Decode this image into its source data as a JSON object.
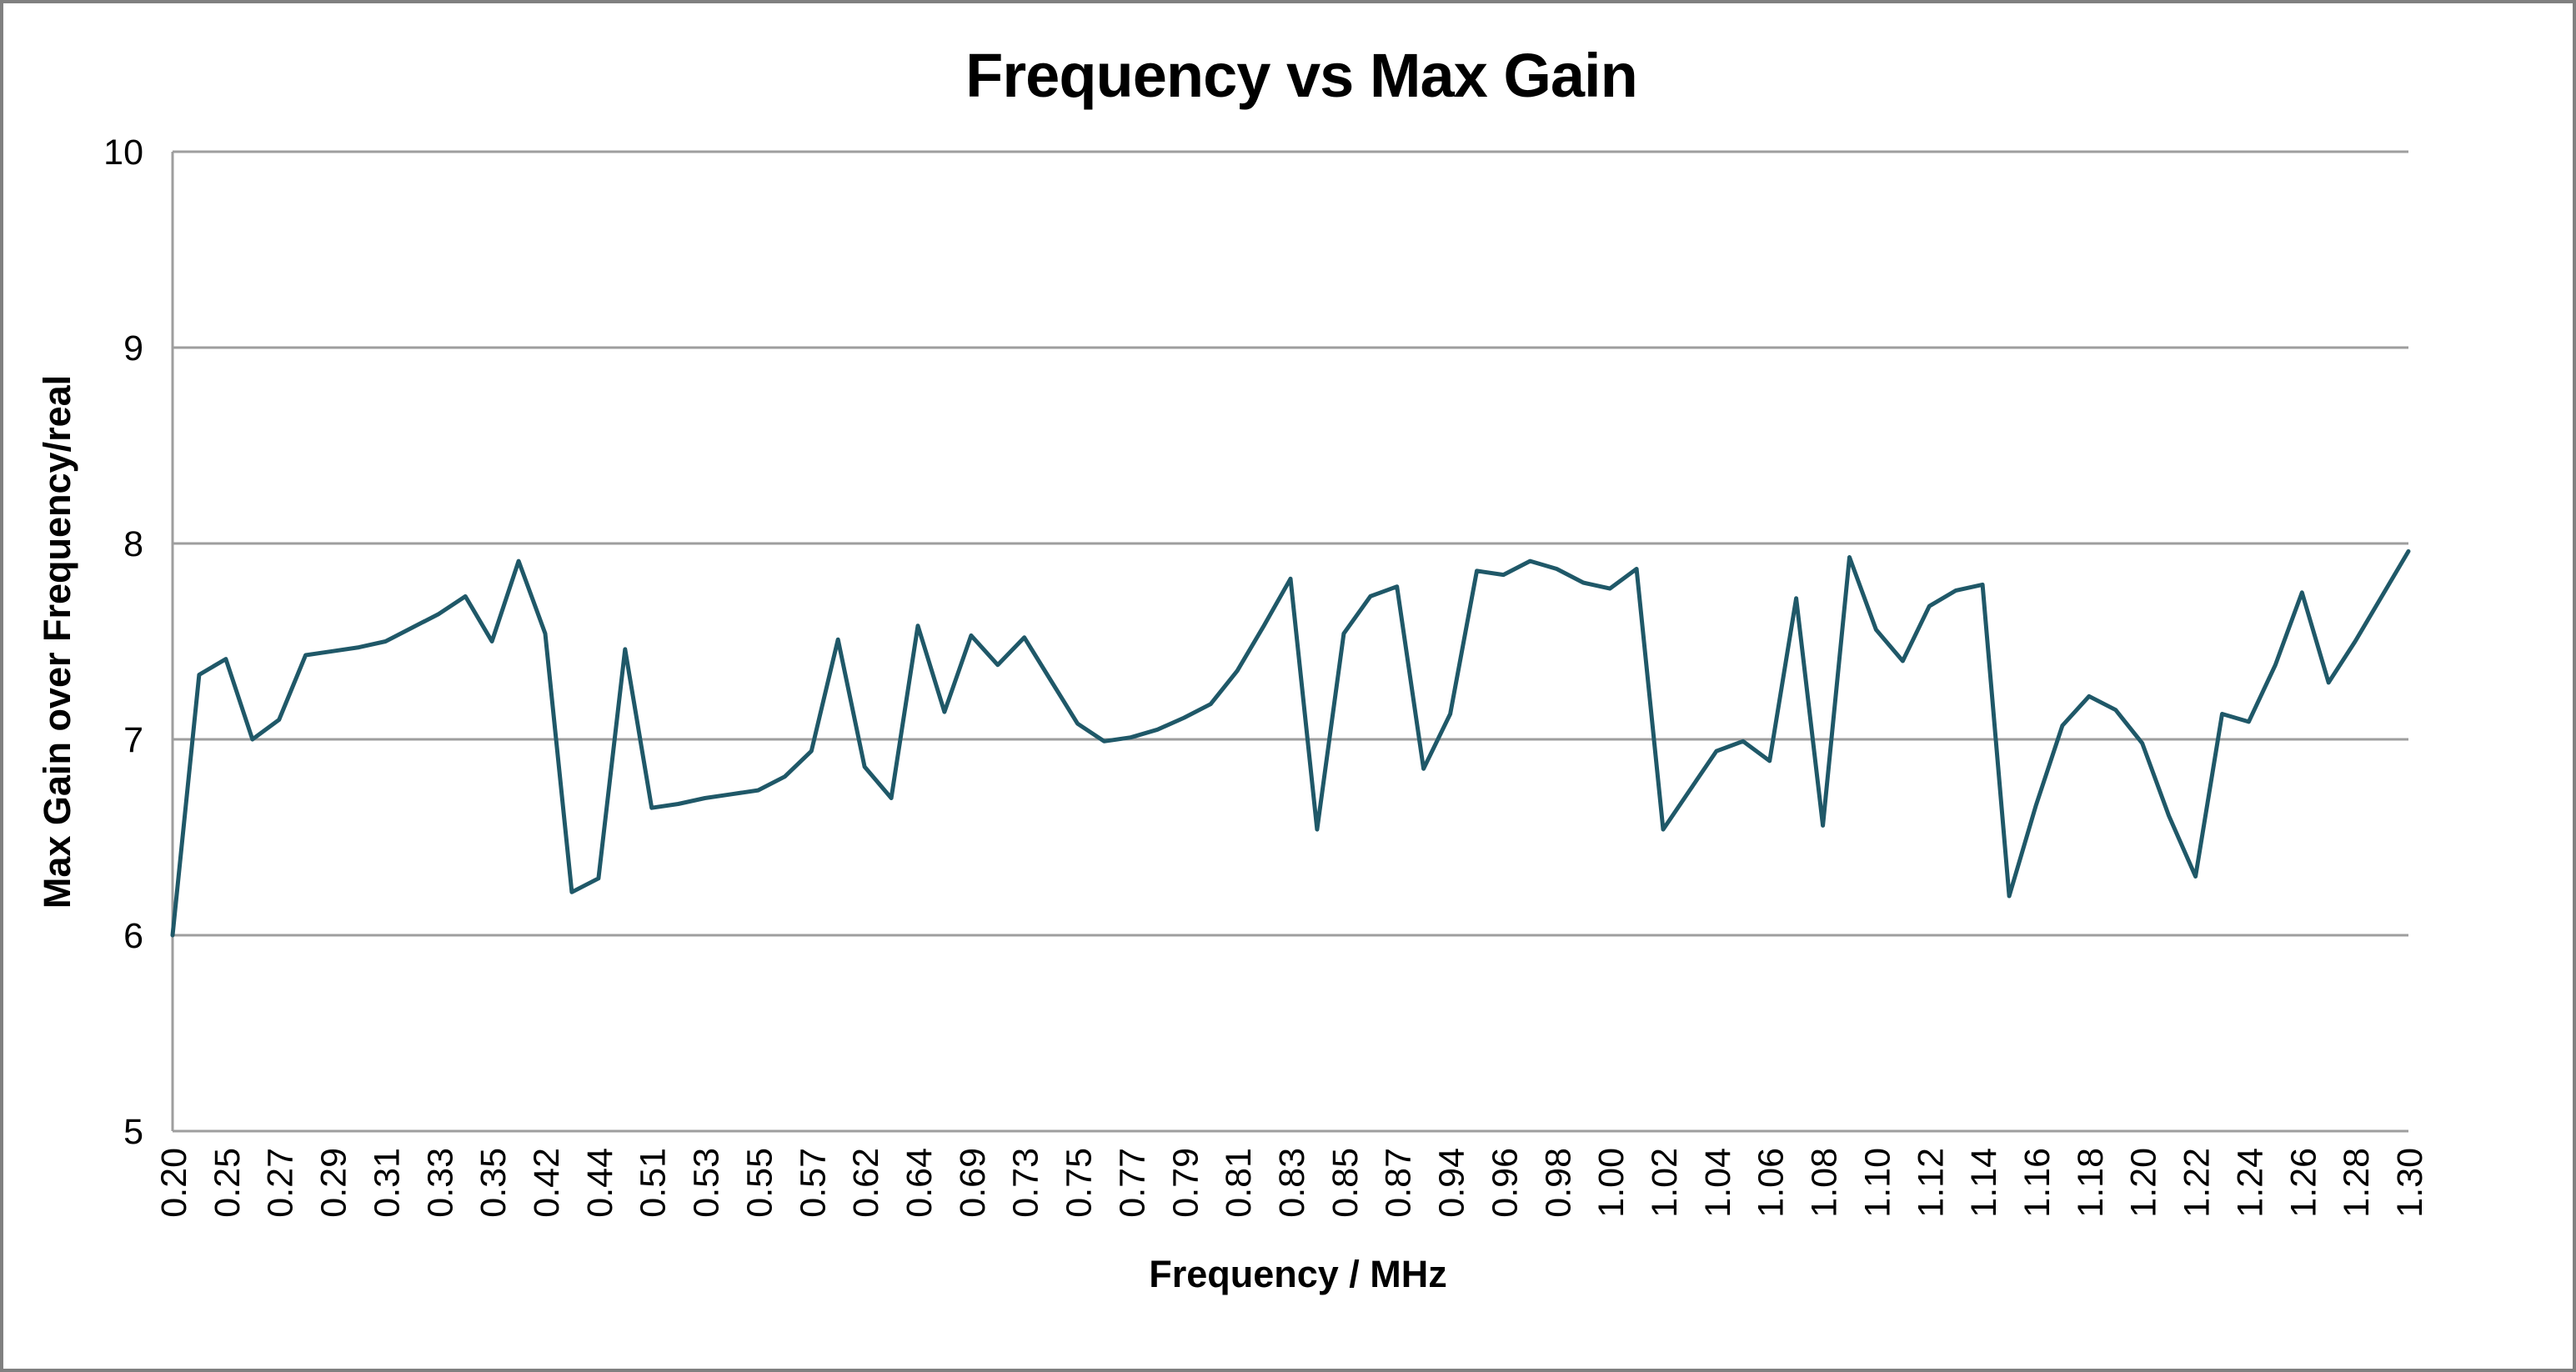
{
  "window": {
    "background_color": "#FFFFFF",
    "border_color": "#808080"
  },
  "chart_data": {
    "type": "line",
    "title": "Frequency vs Max Gain",
    "xlabel": "Frequency / MHz",
    "ylabel": "Max Gain over Frequency/real",
    "ylim": [
      5,
      10
    ],
    "yticks": [
      10,
      9,
      8,
      7,
      6,
      5
    ],
    "grid": "horizontal",
    "legend_position": "none",
    "series_color": "#1F5868",
    "gridline_color": "#9E9E9E",
    "axis_line_color": "#9E9E9E",
    "x_tick_labels": [
      "0.20",
      "0.25",
      "0.27",
      "0.29",
      "0.31",
      "0.33",
      "0.35",
      "0.42",
      "0.44",
      "0.51",
      "0.53",
      "0.55",
      "0.57",
      "0.62",
      "0.64",
      "0.69",
      "0.73",
      "0.75",
      "0.77",
      "0.79",
      "0.81",
      "0.83",
      "0.85",
      "0.87",
      "0.94",
      "0.96",
      "0.98",
      "1.00",
      "1.02",
      "1.04",
      "1.06",
      "1.08",
      "1.10",
      "1.12",
      "1.14",
      "1.16",
      "1.18",
      "1.20",
      "1.22",
      "1.24",
      "1.26",
      "1.28",
      "1.30"
    ],
    "x_tick_every_n_points": 2,
    "values": [
      6.0,
      7.33,
      7.41,
      7.0,
      7.1,
      7.43,
      7.45,
      7.47,
      7.5,
      7.57,
      7.64,
      7.73,
      7.5,
      7.91,
      7.54,
      6.22,
      6.29,
      7.46,
      6.65,
      6.67,
      6.7,
      6.72,
      6.74,
      6.81,
      6.94,
      7.51,
      6.86,
      6.7,
      7.58,
      7.14,
      7.53,
      7.38,
      7.52,
      7.3,
      7.08,
      6.99,
      7.01,
      7.05,
      7.11,
      7.18,
      7.35,
      7.58,
      7.82,
      6.54,
      7.54,
      7.73,
      7.78,
      6.85,
      7.13,
      7.86,
      7.84,
      7.91,
      7.87,
      7.8,
      7.77,
      7.87,
      6.54,
      6.74,
      6.94,
      6.99,
      6.89,
      7.72,
      6.56,
      7.93,
      7.56,
      7.4,
      7.68,
      7.76,
      7.79,
      6.2,
      6.66,
      7.07,
      7.22,
      7.15,
      6.98,
      6.61,
      6.3,
      7.13,
      7.09,
      7.38,
      7.75,
      7.29,
      7.5,
      7.73,
      7.96
    ]
  }
}
